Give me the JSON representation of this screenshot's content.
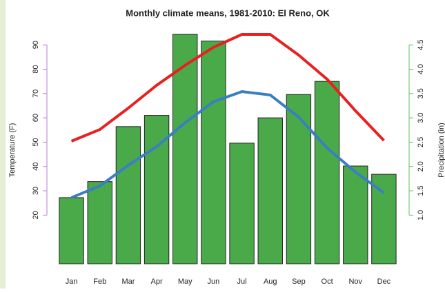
{
  "chart_data": {
    "type": "bar",
    "title": "Monthly climate means, 1981-2010: El Reno, OK",
    "y_label": "Temperature (F)",
    "y2_label": "Precipitation (in)",
    "categories": [
      "Jan",
      "Feb",
      "Mar",
      "Apr",
      "May",
      "Jun",
      "Jul",
      "Aug",
      "Sep",
      "Oct",
      "Nov",
      "Dec"
    ],
    "ylim": [
      0,
      94.3
    ],
    "yticks": [
      20,
      30,
      40,
      50,
      60,
      70,
      80,
      90
    ],
    "y2lim": [
      0,
      4.715
    ],
    "y2ticks": [
      {
        "value": 1,
        "label": "1.0"
      },
      1.5,
      {
        "value": 2,
        "label": "2.0"
      },
      2.5,
      {
        "value": 3,
        "label": "3.0"
      },
      3.5,
      {
        "value": 4,
        "label": "4.0"
      },
      4.5
    ],
    "y_axis_color": "#b57ed6",
    "y2_axis_color": "#5cbf5c",
    "series": [
      {
        "type": "bar",
        "axis": "y2",
        "color": "#4aaa4a",
        "values": [
          1.36,
          1.69,
          2.82,
          3.05,
          4.72,
          4.58,
          2.48,
          3.0,
          3.48,
          3.75,
          2.01,
          1.84
        ]
      },
      {
        "type": "line",
        "color": "#e8201f",
        "values": [
          50.4,
          55.2,
          64,
          73.4,
          81.6,
          89,
          94.3,
          94.3,
          85.8,
          75.9,
          62.9,
          50.7
        ]
      },
      {
        "type": "line",
        "color": "#3a7fc2",
        "values": [
          27.2,
          32,
          40.5,
          48.2,
          58,
          66.6,
          70.8,
          69.4,
          60.3,
          47.6,
          37.7,
          29.2
        ]
      }
    ]
  }
}
